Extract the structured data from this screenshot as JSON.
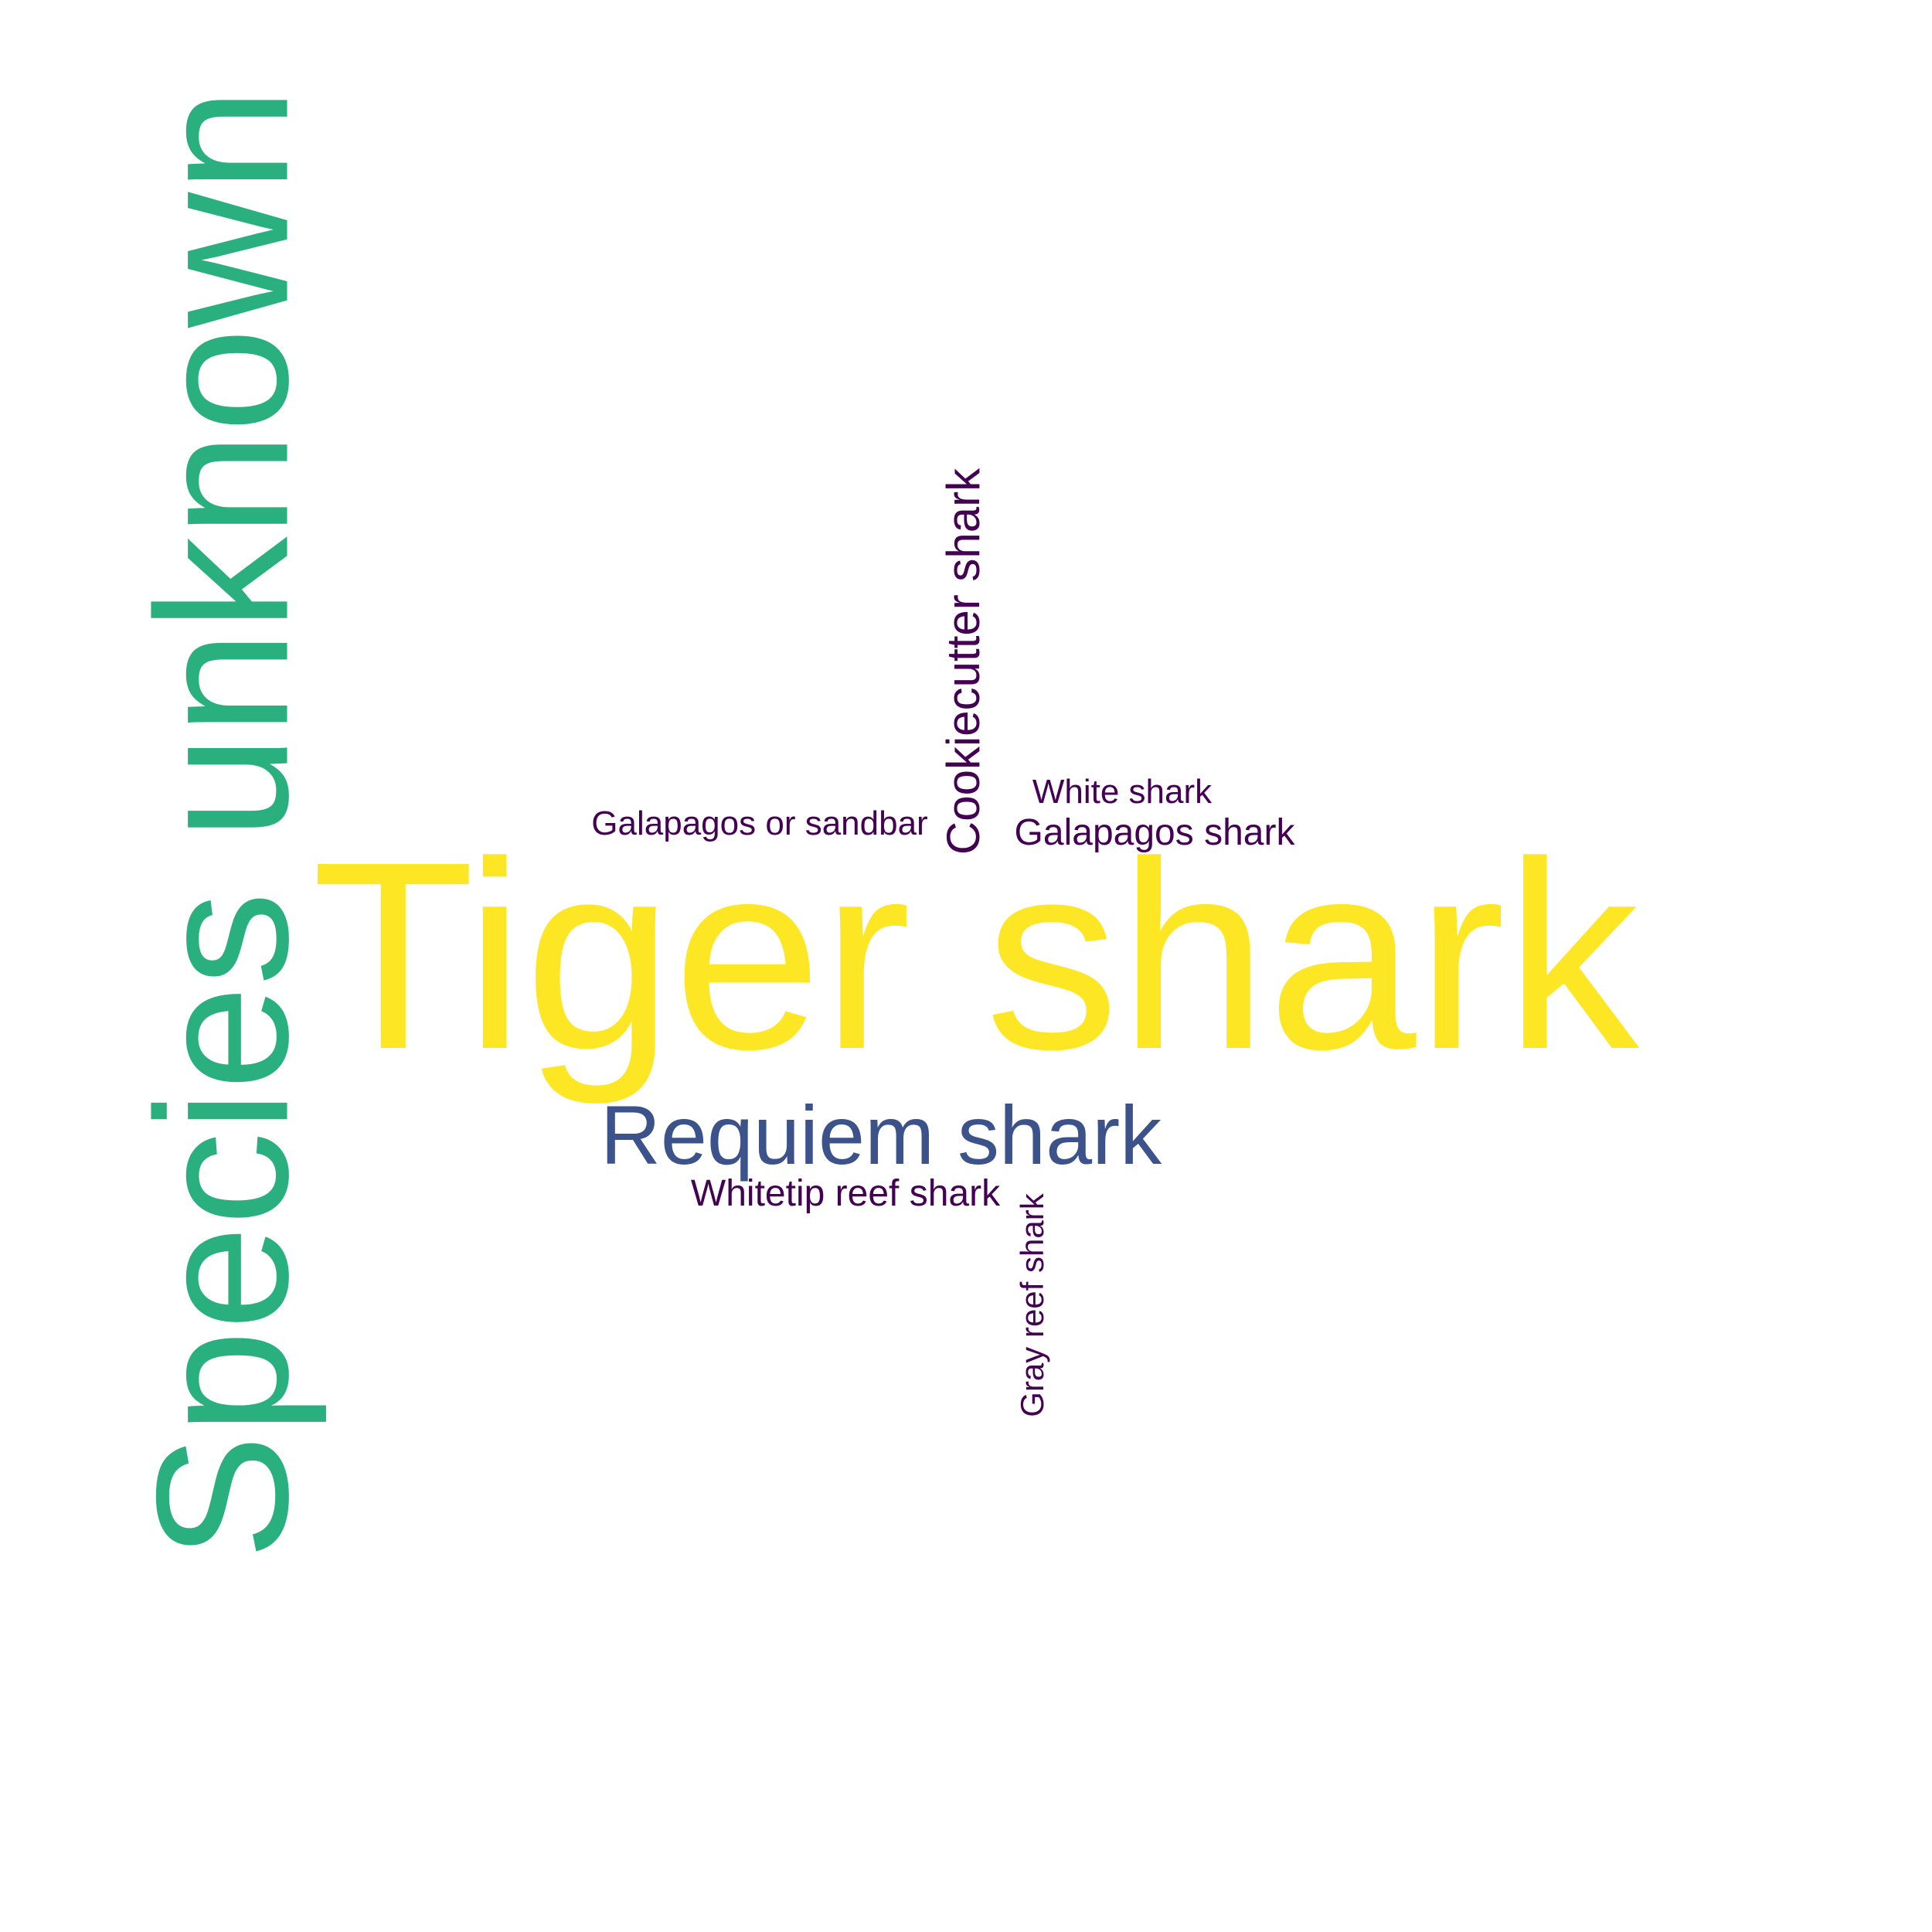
{
  "chart_data": {
    "type": "wordcloud",
    "palette": "viridis",
    "words": [
      {
        "text": "Tiger shark",
        "color": "#FDE725",
        "orientation": "horizontal"
      },
      {
        "text": "Species unknown",
        "color": "#2AB07F",
        "orientation": "vertical"
      },
      {
        "text": "Requiem shark",
        "color": "#3B528B",
        "orientation": "horizontal"
      },
      {
        "text": "Cookiecutter shark",
        "color": "#440154",
        "orientation": "vertical"
      },
      {
        "text": "Whitetip reef shark",
        "color": "#440154",
        "orientation": "horizontal"
      },
      {
        "text": "Galapagos shark",
        "color": "#440154",
        "orientation": "horizontal"
      },
      {
        "text": "Galapagos or sandbar",
        "color": "#440154",
        "orientation": "horizontal"
      },
      {
        "text": "White shark",
        "color": "#440154",
        "orientation": "horizontal"
      },
      {
        "text": "Gray reef shark",
        "color": "#440154",
        "orientation": "vertical"
      }
    ]
  }
}
